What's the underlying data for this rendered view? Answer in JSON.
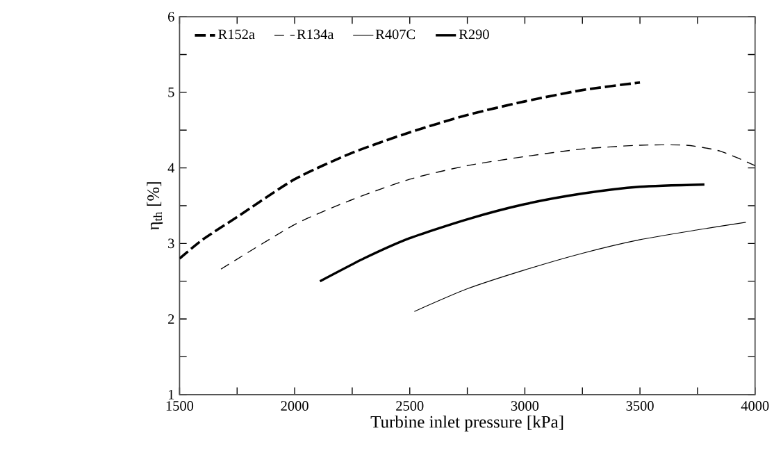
{
  "chart_data": {
    "type": "line",
    "xlabel": "Turbine inlet pressure [kPa]",
    "ylabel": "η$_{th}$ [%]",
    "xlim": [
      1500,
      4000
    ],
    "ylim": [
      1,
      6
    ],
    "xticks": [
      1500,
      2000,
      2500,
      3000,
      3500,
      4000
    ],
    "yticks": [
      1,
      2,
      3,
      4,
      5,
      6
    ],
    "grid": false,
    "legend": "top",
    "marker": "none",
    "series": [
      {
        "name": "R152a",
        "color": "#000000",
        "line_style": "dashed",
        "x": [
          1500,
          1600,
          1750,
          2000,
          2250,
          2500,
          2750,
          3000,
          3250,
          3500
        ],
        "values": [
          2.8,
          3.05,
          3.35,
          3.85,
          4.2,
          4.47,
          4.7,
          4.88,
          5.03,
          5.13
        ]
      },
      {
        "name": "R134a",
        "color": "#000000",
        "line_style": "dashed",
        "x": [
          1680,
          2000,
          2250,
          2500,
          2750,
          3000,
          3250,
          3500,
          3700,
          3850,
          4000
        ],
        "values": [
          2.66,
          3.25,
          3.58,
          3.85,
          4.03,
          4.15,
          4.25,
          4.3,
          4.3,
          4.22,
          4.03
        ]
      },
      {
        "name": "R407C",
        "color": "#000000",
        "line_style": "solid",
        "x": [
          2520,
          2750,
          3000,
          3250,
          3500,
          3750,
          3960
        ],
        "values": [
          2.1,
          2.4,
          2.65,
          2.87,
          3.05,
          3.18,
          3.28
        ]
      },
      {
        "name": "R290",
        "color": "#000000",
        "line_style": "solid",
        "x": [
          2110,
          2300,
          2500,
          2750,
          3000,
          3250,
          3500,
          3780
        ],
        "values": [
          2.5,
          2.8,
          3.07,
          3.32,
          3.52,
          3.66,
          3.75,
          3.78
        ]
      }
    ]
  }
}
